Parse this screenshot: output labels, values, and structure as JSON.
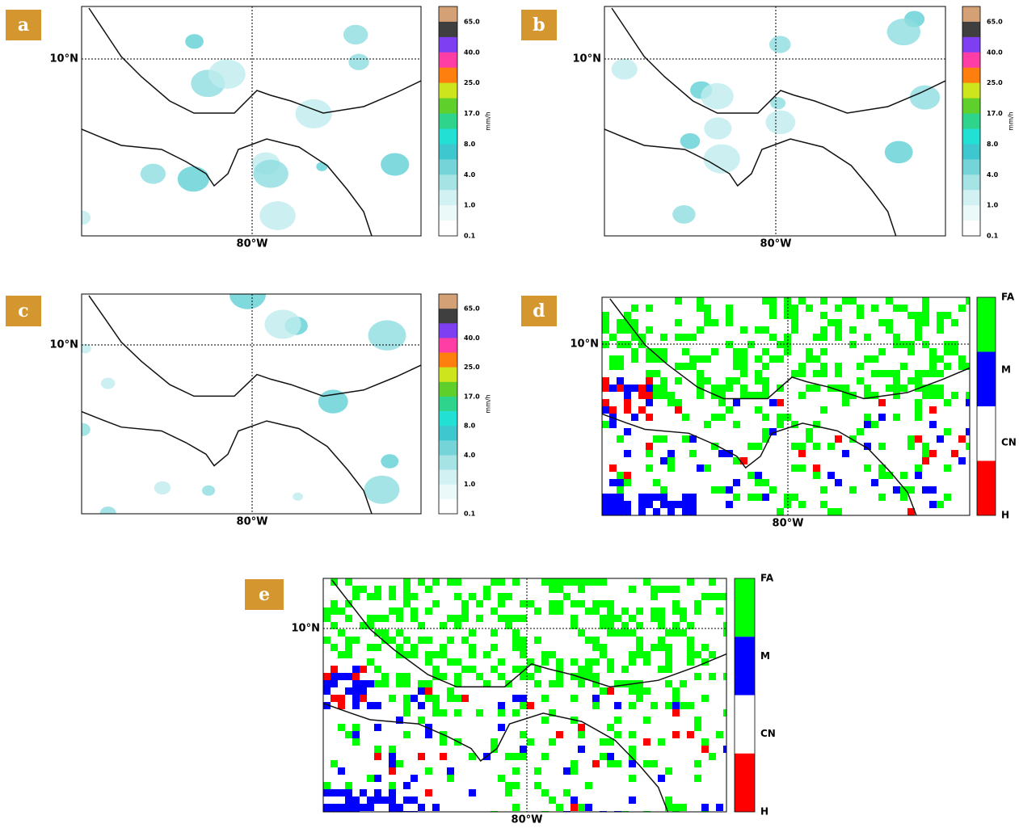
{
  "panels": [
    {
      "label": "a",
      "lat_label": "10°N",
      "lon_label": "80°W",
      "colorbar": {
        "ticks": [
          "65.0",
          "40.0",
          "25.0",
          "17.0",
          "8.0",
          "4.0",
          "1.0",
          "0.1"
        ],
        "unit": "mm/h"
      }
    },
    {
      "label": "b",
      "lat_label": "10°N",
      "lon_label": "80°W",
      "colorbar": {
        "ticks": [
          "65.0",
          "40.0",
          "25.0",
          "17.0",
          "8.0",
          "4.0",
          "1.0",
          "0.1"
        ],
        "unit": "mm/h"
      }
    },
    {
      "label": "c",
      "lat_label": "10°N",
      "lon_label": "80°W",
      "colorbar": {
        "ticks": [
          "65.0",
          "40.0",
          "25.0",
          "17.0",
          "8.0",
          "4.0",
          "1.0",
          "0.1"
        ],
        "unit": "mm/h"
      }
    },
    {
      "label": "d",
      "lat_label": "10°N",
      "lon_label": "80°W",
      "colorbar": {
        "classes": [
          "FA",
          "M",
          "CN",
          "H"
        ]
      }
    },
    {
      "label": "e",
      "lat_label": "10°N",
      "lon_label": "80°W",
      "colorbar": {
        "classes": [
          "FA",
          "M",
          "CN",
          "H"
        ]
      }
    }
  ]
}
